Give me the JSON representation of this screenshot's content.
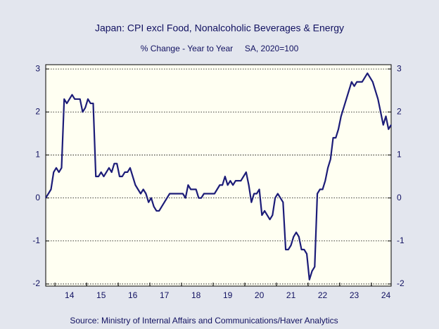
{
  "chart_data": {
    "type": "line",
    "title": "Japan: CPI excl Food, Nonalcoholic Beverages & Energy",
    "subtitle": "% Change - Year to Year     SA, 2020=100",
    "source": "Source:  Ministry of Internal Affairs and Communications/Haver Analytics",
    "categories": [
      null,
      null,
      null,
      null,
      null,
      null,
      null,
      null,
      null,
      "14",
      null,
      null,
      null,
      null,
      null,
      null,
      null,
      null,
      null,
      null,
      null,
      "15",
      null,
      null,
      null,
      null,
      null,
      null,
      null,
      null,
      null,
      null,
      null,
      "16",
      null,
      null,
      null,
      null,
      null,
      null,
      null,
      null,
      null,
      null,
      null,
      "17",
      null,
      null,
      null,
      null,
      null,
      null,
      null,
      null,
      null,
      null,
      null,
      "18",
      null,
      null,
      null,
      null,
      null,
      null,
      null,
      null,
      null,
      null,
      null,
      "19",
      null,
      null,
      null,
      null,
      null,
      null,
      null,
      null,
      null,
      null,
      null,
      "20",
      null,
      null,
      null,
      null,
      null,
      null,
      null,
      null,
      null,
      null,
      null,
      "21",
      null,
      null,
      null,
      null,
      null,
      null,
      null,
      null,
      null,
      null,
      null,
      "22",
      null,
      null,
      null,
      null,
      null,
      null,
      null,
      null,
      null,
      null,
      null,
      "23",
      null,
      null,
      null,
      null,
      null,
      null,
      null,
      null,
      null,
      null,
      null,
      "24",
      null,
      null
    ],
    "series": [
      {
        "color": "#1c1c78",
        "values": [
          0.0,
          0.1,
          0.2,
          0.6,
          0.7,
          0.6,
          0.7,
          2.3,
          2.2,
          2.3,
          2.4,
          2.3,
          2.3,
          2.3,
          2.0,
          2.1,
          2.3,
          2.2,
          2.2,
          0.5,
          0.5,
          0.6,
          0.5,
          0.6,
          0.7,
          0.6,
          0.8,
          0.8,
          0.5,
          0.5,
          0.6,
          0.6,
          0.7,
          0.5,
          0.3,
          0.2,
          0.1,
          0.2,
          0.1,
          -0.1,
          0.0,
          -0.2,
          -0.3,
          -0.3,
          -0.2,
          -0.1,
          0.0,
          0.1,
          0.1,
          0.1,
          0.1,
          0.1,
          0.1,
          0.0,
          0.3,
          0.2,
          0.2,
          0.2,
          0.0,
          0.0,
          0.1,
          0.1,
          0.1,
          0.1,
          0.1,
          0.2,
          0.3,
          0.3,
          0.5,
          0.3,
          0.4,
          0.3,
          0.4,
          0.4,
          0.4,
          0.5,
          0.6,
          0.3,
          -0.1,
          0.1,
          0.1,
          0.2,
          -0.4,
          -0.3,
          -0.4,
          -0.5,
          -0.4,
          0.0,
          0.1,
          0.0,
          -0.1,
          -1.2,
          -1.2,
          -1.1,
          -0.9,
          -0.8,
          -0.9,
          -1.2,
          -1.2,
          -1.3,
          -1.9,
          -1.7,
          -1.6,
          0.1,
          0.2,
          0.2,
          0.4,
          0.7,
          0.9,
          1.4,
          1.4,
          1.6,
          1.9,
          2.1,
          2.3,
          2.5,
          2.7,
          2.6,
          2.7,
          2.7,
          2.7,
          2.8,
          2.9,
          2.8,
          2.7,
          2.5,
          2.3,
          2.0,
          1.7,
          1.9,
          1.6,
          1.7
        ]
      }
    ],
    "ylim": [
      -2.05,
      3.1
    ],
    "yticks": [
      -2,
      -1,
      0,
      1,
      2,
      3
    ],
    "grid": true
  }
}
